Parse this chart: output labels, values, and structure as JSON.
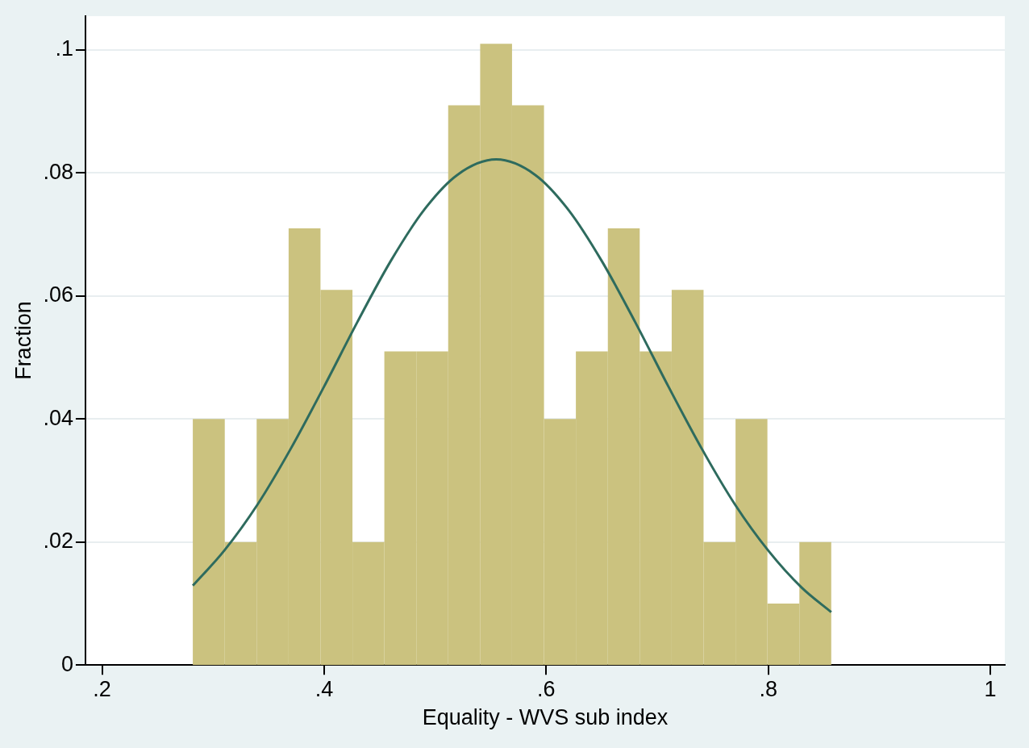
{
  "chart_data": {
    "type": "histogram",
    "xlabel": "Equality - WVS sub index",
    "ylabel": "Fraction",
    "series": [
      {
        "color": "#cbc27f",
        "bins": [
          0.2817,
          0.3105,
          0.3392,
          0.368,
          0.3967,
          0.4255,
          0.4542,
          0.483,
          0.5117,
          0.5405,
          0.5692,
          0.598,
          0.6267,
          0.6555,
          0.6842,
          0.713,
          0.7417,
          0.7705,
          0.7992,
          0.828,
          0.8567
        ],
        "values": [
          0.04,
          0.02,
          0.04,
          0.071,
          0.061,
          0.02,
          0.051,
          0.051,
          0.091,
          0.101,
          0.091,
          0.04,
          0.051,
          0.071,
          0.051,
          0.061,
          0.02,
          0.04,
          0.01,
          0.02
        ]
      },
      {
        "type": "line",
        "color": "#2e6b5e",
        "x": [
          0.2817,
          0.31,
          0.34,
          0.37,
          0.4,
          0.43,
          0.46,
          0.49,
          0.52,
          0.555,
          0.59,
          0.62,
          0.65,
          0.68,
          0.71,
          0.74,
          0.77,
          0.8,
          0.83,
          0.8567
        ],
        "values": [
          0.0129,
          0.0186,
          0.0261,
          0.0352,
          0.0453,
          0.0558,
          0.0657,
          0.074,
          0.0797,
          0.0822,
          0.0797,
          0.074,
          0.0657,
          0.0558,
          0.0453,
          0.0352,
          0.0261,
          0.0186,
          0.0126,
          0.0086
        ]
      }
    ],
    "xlim": [
      0.185,
      1.013
    ],
    "xticks": [
      {
        "value": 0.2,
        "label": ".2"
      },
      {
        "value": 0.4,
        "label": ".4"
      },
      {
        "value": 0.6,
        "label": ".6"
      },
      {
        "value": 0.8,
        "label": ".8"
      },
      {
        "value": 1,
        "label": "1"
      }
    ],
    "ylim": [
      0,
      0.1055
    ],
    "yticks": [
      {
        "value": 0,
        "label": "0"
      },
      {
        "value": 0.02,
        "label": ".02"
      },
      {
        "value": 0.04,
        "label": ".04"
      },
      {
        "value": 0.06,
        "label": ".06"
      },
      {
        "value": 0.08,
        "label": ".08"
      },
      {
        "value": 0.1,
        "label": ".1"
      }
    ],
    "grid": "y",
    "legend": false,
    "marker": "none",
    "line_style": "solid"
  }
}
